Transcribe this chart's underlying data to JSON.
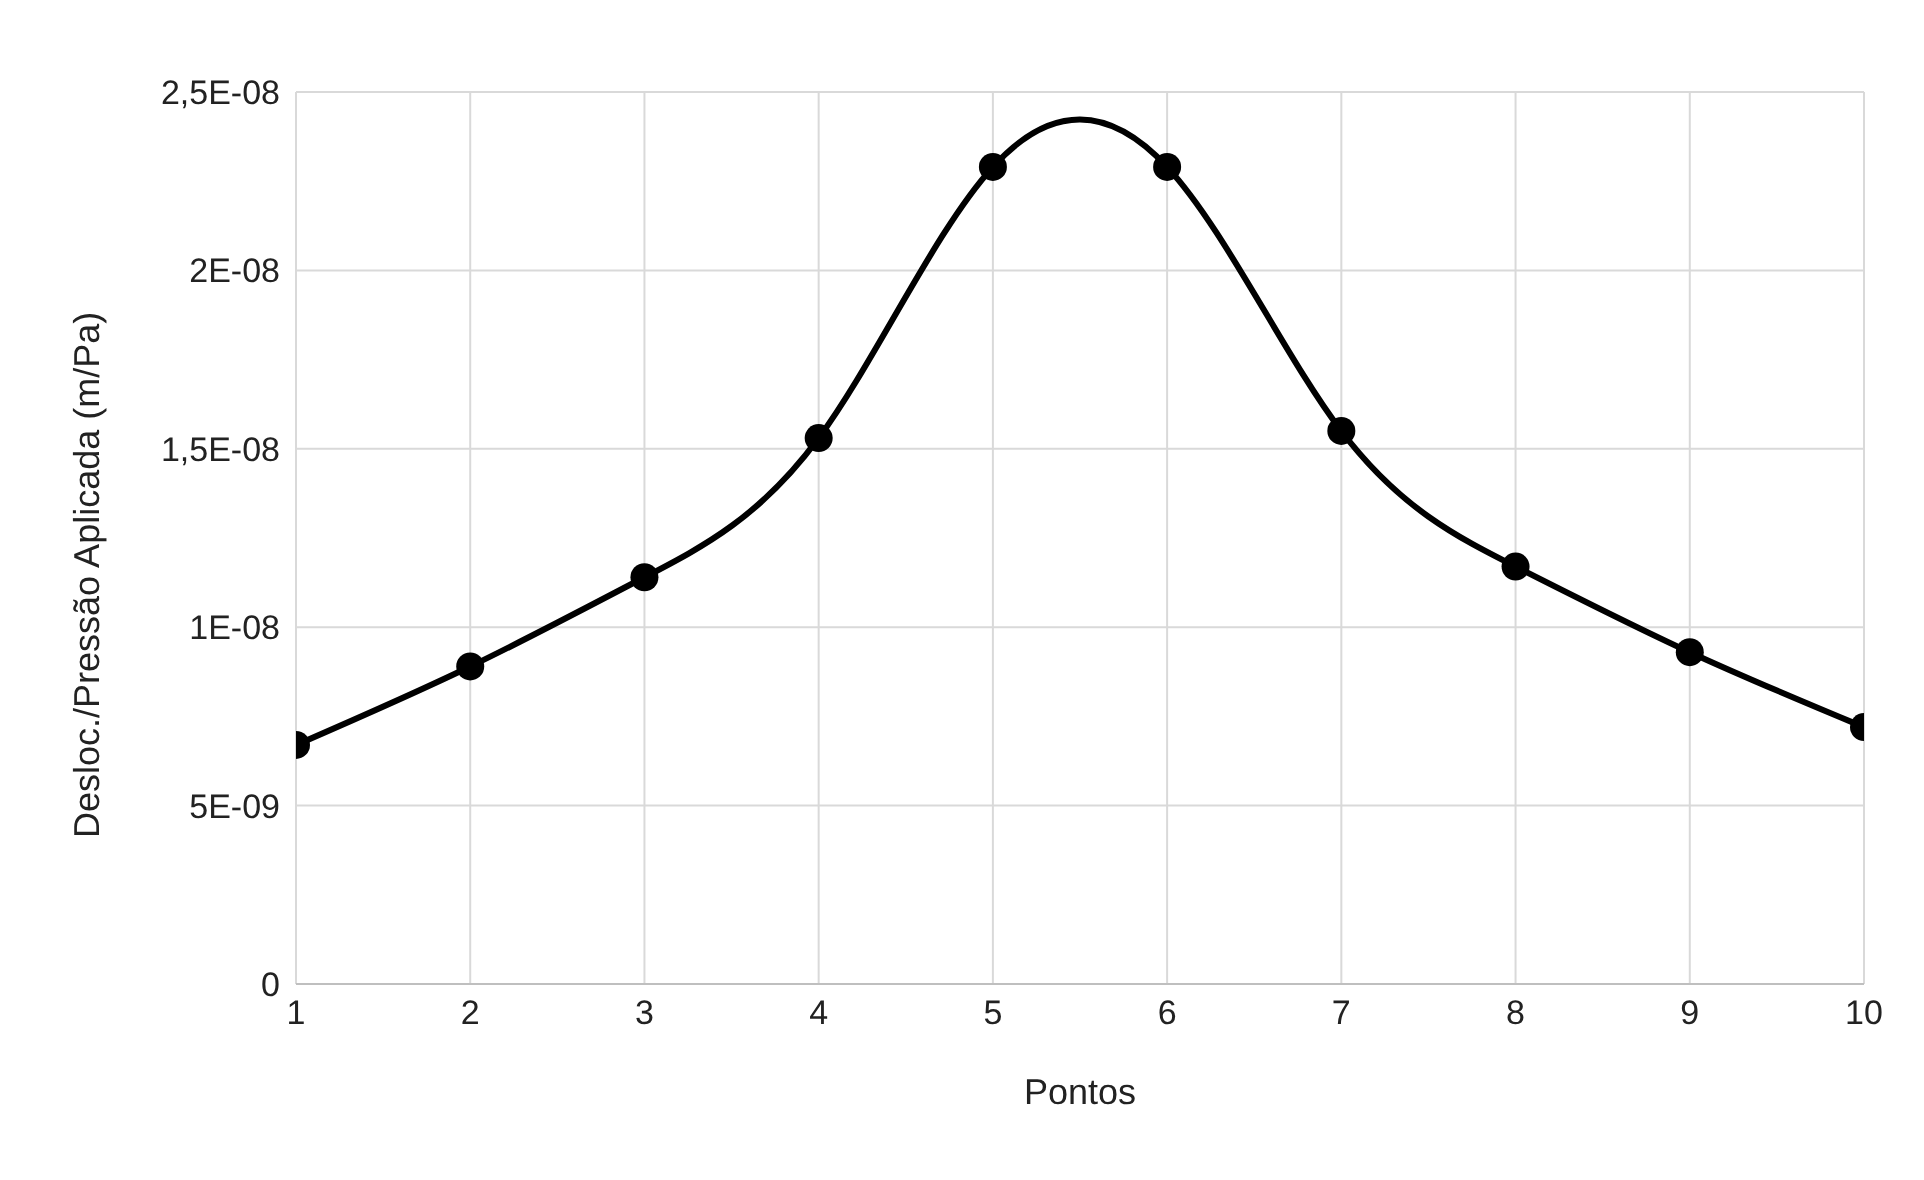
{
  "chart_data": {
    "type": "line",
    "xlabel": "Pontos",
    "ylabel": "Desloc./Pressão Aplicada (m/Pa)",
    "x": [
      1,
      2,
      3,
      4,
      5,
      6,
      7,
      8,
      9,
      10
    ],
    "series": [
      {
        "color": "#000000",
        "values": [
          6.7e-09,
          8.9e-09,
          1.14e-08,
          1.53e-08,
          2.29e-08,
          2.29e-08,
          1.55e-08,
          1.17e-08,
          9.3e-09,
          7.2e-09
        ]
      }
    ],
    "xlim": [
      1,
      10
    ],
    "xticks": [
      1,
      2,
      3,
      4,
      5,
      6,
      7,
      8,
      9,
      10
    ],
    "ylim": [
      0,
      2.5e-08
    ],
    "yticks": [
      {
        "value": 0,
        "label": "0"
      },
      {
        "value": 5e-09,
        "label": "5E-09"
      },
      {
        "value": 1e-08,
        "label": "1E-08"
      },
      {
        "value": 1.5e-08,
        "label": "1,5E-08"
      },
      {
        "value": 2e-08,
        "label": "2E-08"
      },
      {
        "value": 2.5e-08,
        "label": "2,5E-08"
      }
    ],
    "grid": true,
    "legend": false,
    "marker": "circle",
    "line_style": "solid"
  }
}
